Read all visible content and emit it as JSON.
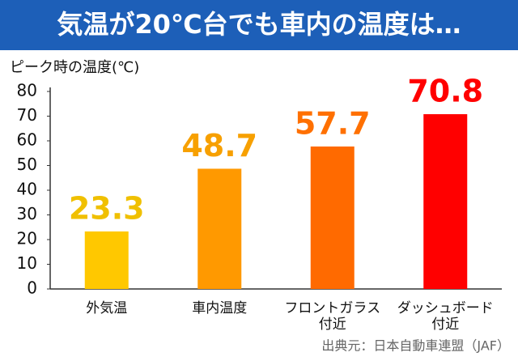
{
  "chart_data": {
    "type": "bar",
    "title": "気温が20℃台でも車内の温度は…",
    "y_label": "ピーク時の温度(℃)",
    "source": "出典元：日本自動車連盟（JAF）",
    "categories": [
      [
        "外気温"
      ],
      [
        "車内温度"
      ],
      [
        "フロントガラス",
        "付近"
      ],
      [
        "ダッシュボード",
        "付近"
      ]
    ],
    "values": [
      23.3,
      48.7,
      57.7,
      70.8
    ],
    "colors": [
      "#ffc800",
      "#ff9900",
      "#ff6a00",
      "#ff0000"
    ],
    "label_colors": [
      "#f0c000",
      "#f7a000",
      "#ff7000",
      "#ff0000"
    ],
    "ylim": [
      0,
      80
    ],
    "yticks": [
      0,
      10,
      20,
      30,
      40,
      50,
      60,
      70,
      80
    ],
    "grid": false
  }
}
